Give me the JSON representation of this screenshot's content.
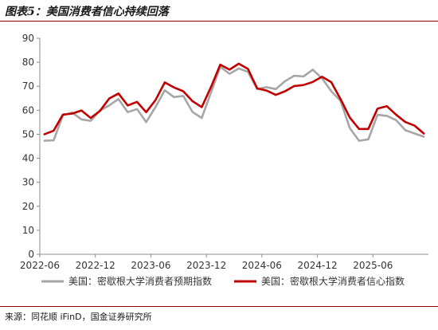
{
  "figure_title": "图表5：美国消费者信心持续回落",
  "source_text": "来源：同花顺 iFinD，国金证券研究所",
  "colors": {
    "expectations": "#a6a6a6",
    "sentiment": "#c00000",
    "rule": "#8b0000",
    "axis": "#8c8c8c"
  },
  "chart_data": {
    "type": "line",
    "title": "",
    "xlabel": "",
    "ylabel": "",
    "ylim": [
      0,
      90
    ],
    "yticks": [
      0,
      10,
      20,
      30,
      40,
      50,
      60,
      70,
      80,
      90
    ],
    "xlim": [
      "2022-06",
      "2025-12"
    ],
    "xticks": [
      "2022-06",
      "2022-12",
      "2023-06",
      "2023-12",
      "2024-06",
      "2024-12",
      "2025-06"
    ],
    "grid": false,
    "legend_position": "bottom",
    "x": [
      "2022-06",
      "2022-07",
      "2022-08",
      "2022-09",
      "2022-10",
      "2022-11",
      "2022-12",
      "2023-01",
      "2023-02",
      "2023-03",
      "2023-04",
      "2023-05",
      "2023-06",
      "2023-07",
      "2023-08",
      "2023-09",
      "2023-10",
      "2023-11",
      "2023-12",
      "2024-01",
      "2024-02",
      "2024-03",
      "2024-04",
      "2024-05",
      "2024-06",
      "2024-07",
      "2024-08",
      "2024-09",
      "2024-10",
      "2024-11",
      "2024-12",
      "2025-01",
      "2025-02",
      "2025-03",
      "2025-04",
      "2025-05",
      "2025-06",
      "2025-07",
      "2025-08",
      "2025-09",
      "2025-10",
      "2025-11"
    ],
    "series": [
      {
        "name": "美国：密歇根大学消费者预期指数",
        "values": [
          47.3,
          47.5,
          58.0,
          59.0,
          56.2,
          55.6,
          59.9,
          62.0,
          64.7,
          59.2,
          60.5,
          55.1,
          61.3,
          68.3,
          65.5,
          66.0,
          59.3,
          56.8,
          67.4,
          78.1,
          75.2,
          77.4,
          76.0,
          68.8,
          69.6,
          68.8,
          72.1,
          74.4,
          74.1,
          76.9,
          73.3,
          67.9,
          64.0,
          52.6,
          47.3,
          47.9,
          58.1,
          57.7,
          55.9,
          51.7,
          50.3,
          49.0
        ]
      },
      {
        "name": "美国：密歇根大学消费者信心指数",
        "values": [
          50.0,
          51.5,
          58.2,
          58.6,
          59.9,
          56.8,
          59.7,
          64.9,
          67.0,
          62.0,
          63.5,
          59.2,
          64.2,
          71.6,
          69.5,
          67.9,
          63.8,
          61.3,
          69.7,
          79.0,
          76.9,
          79.4,
          77.2,
          69.1,
          68.2,
          66.4,
          67.9,
          70.1,
          70.5,
          71.8,
          74.0,
          71.7,
          64.7,
          57.0,
          52.2,
          52.2,
          60.7,
          61.7,
          58.2,
          55.1,
          53.6,
          50.3
        ]
      }
    ]
  }
}
